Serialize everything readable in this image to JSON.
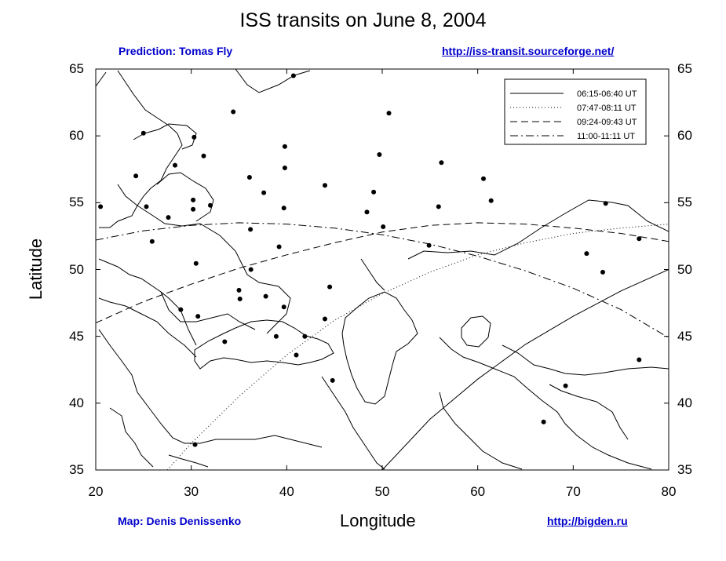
{
  "chart_data": {
    "type": "line",
    "title": "ISS transits on June 8, 2004",
    "xlabel": "Longitude",
    "ylabel": "Latitude",
    "xlim": [
      20,
      80
    ],
    "ylim": [
      35,
      65
    ],
    "x_ticks": [
      "20",
      "30",
      "40",
      "50",
      "60",
      "70",
      "80"
    ],
    "y_ticks": [
      "35",
      "40",
      "45",
      "50",
      "55",
      "60",
      "65"
    ],
    "legend_position": "top-right",
    "grid": false,
    "series": [
      {
        "name": "06:15-06:40 UT",
        "style": "solid",
        "x": [
          50.0,
          55,
          60,
          65,
          70,
          75,
          80
        ],
        "y": [
          35.0,
          38.8,
          41.8,
          44.4,
          46.5,
          48.4,
          50.0
        ]
      },
      {
        "name": "07:47-08:11 UT",
        "style": "dotted",
        "x": [
          27.5,
          30,
          35,
          40,
          45,
          50,
          55,
          60,
          65,
          70,
          75,
          80
        ],
        "y": [
          35.0,
          37.0,
          40.5,
          43.6,
          46.2,
          48.2,
          49.8,
          51.1,
          52.0,
          52.7,
          53.1,
          53.4
        ]
      },
      {
        "name": "09:24-09:43 UT",
        "style": "dashed",
        "x": [
          20,
          25,
          30,
          35,
          40,
          45,
          50,
          55,
          60,
          65,
          70,
          75,
          80
        ],
        "y": [
          46.0,
          47.6,
          48.9,
          50.1,
          51.1,
          52.0,
          52.8,
          53.3,
          53.5,
          53.4,
          53.1,
          52.7,
          52.1
        ]
      },
      {
        "name": "11:00-11:11 UT",
        "style": "dashdot",
        "x": [
          20,
          25,
          30,
          35,
          40,
          45,
          50,
          55,
          60,
          65,
          70,
          75,
          80
        ],
        "y": [
          52.2,
          52.9,
          53.3,
          53.5,
          53.4,
          53.1,
          52.6,
          51.9,
          51.0,
          49.9,
          48.6,
          47.0,
          44.9
        ]
      }
    ],
    "cities": [
      [
        20.5,
        54.7
      ],
      [
        25.0,
        60.2
      ],
      [
        24.2,
        57.0
      ],
      [
        25.3,
        54.7
      ],
      [
        27.6,
        53.9
      ],
      [
        25.9,
        52.1
      ],
      [
        28.3,
        57.8
      ],
      [
        30.3,
        59.9
      ],
      [
        31.3,
        58.5
      ],
      [
        30.2,
        55.2
      ],
      [
        30.2,
        54.5
      ],
      [
        32.0,
        54.8
      ],
      [
        34.4,
        61.8
      ],
      [
        40.7,
        64.5
      ],
      [
        36.1,
        56.9
      ],
      [
        39.8,
        59.2
      ],
      [
        39.8,
        57.6
      ],
      [
        37.6,
        55.75
      ],
      [
        39.7,
        54.6
      ],
      [
        44.0,
        56.3
      ],
      [
        50.7,
        61.7
      ],
      [
        49.7,
        58.6
      ],
      [
        49.1,
        55.8
      ],
      [
        48.4,
        54.3
      ],
      [
        50.1,
        53.2
      ],
      [
        56.2,
        58.0
      ],
      [
        60.6,
        56.8
      ],
      [
        61.4,
        55.15
      ],
      [
        55.9,
        54.7
      ],
      [
        54.9,
        51.8
      ],
      [
        73.4,
        54.95
      ],
      [
        76.9,
        52.3
      ],
      [
        71.4,
        51.2
      ],
      [
        73.1,
        49.8
      ],
      [
        76.9,
        43.25
      ],
      [
        69.2,
        41.3
      ],
      [
        66.9,
        38.6
      ],
      [
        30.5,
        50.45
      ],
      [
        36.2,
        53.0
      ],
      [
        39.2,
        51.7
      ],
      [
        36.25,
        50.0
      ],
      [
        35.0,
        48.45
      ],
      [
        35.1,
        47.8
      ],
      [
        37.8,
        48.0
      ],
      [
        44.5,
        48.7
      ],
      [
        39.7,
        47.2
      ],
      [
        38.9,
        45.0
      ],
      [
        41.9,
        45.0
      ],
      [
        44.0,
        46.3
      ],
      [
        41.0,
        43.6
      ],
      [
        44.8,
        41.7
      ],
      [
        33.5,
        44.6
      ],
      [
        30.7,
        46.5
      ],
      [
        28.9,
        47.0
      ],
      [
        30.4,
        36.9
      ]
    ]
  },
  "credits": {
    "prediction": "Prediction: Tomas Fly",
    "prediction_url": "http://iss-transit.sourceforge.net/",
    "map": "Map: Denis Denissenko",
    "map_url": "http://bigden.ru"
  }
}
